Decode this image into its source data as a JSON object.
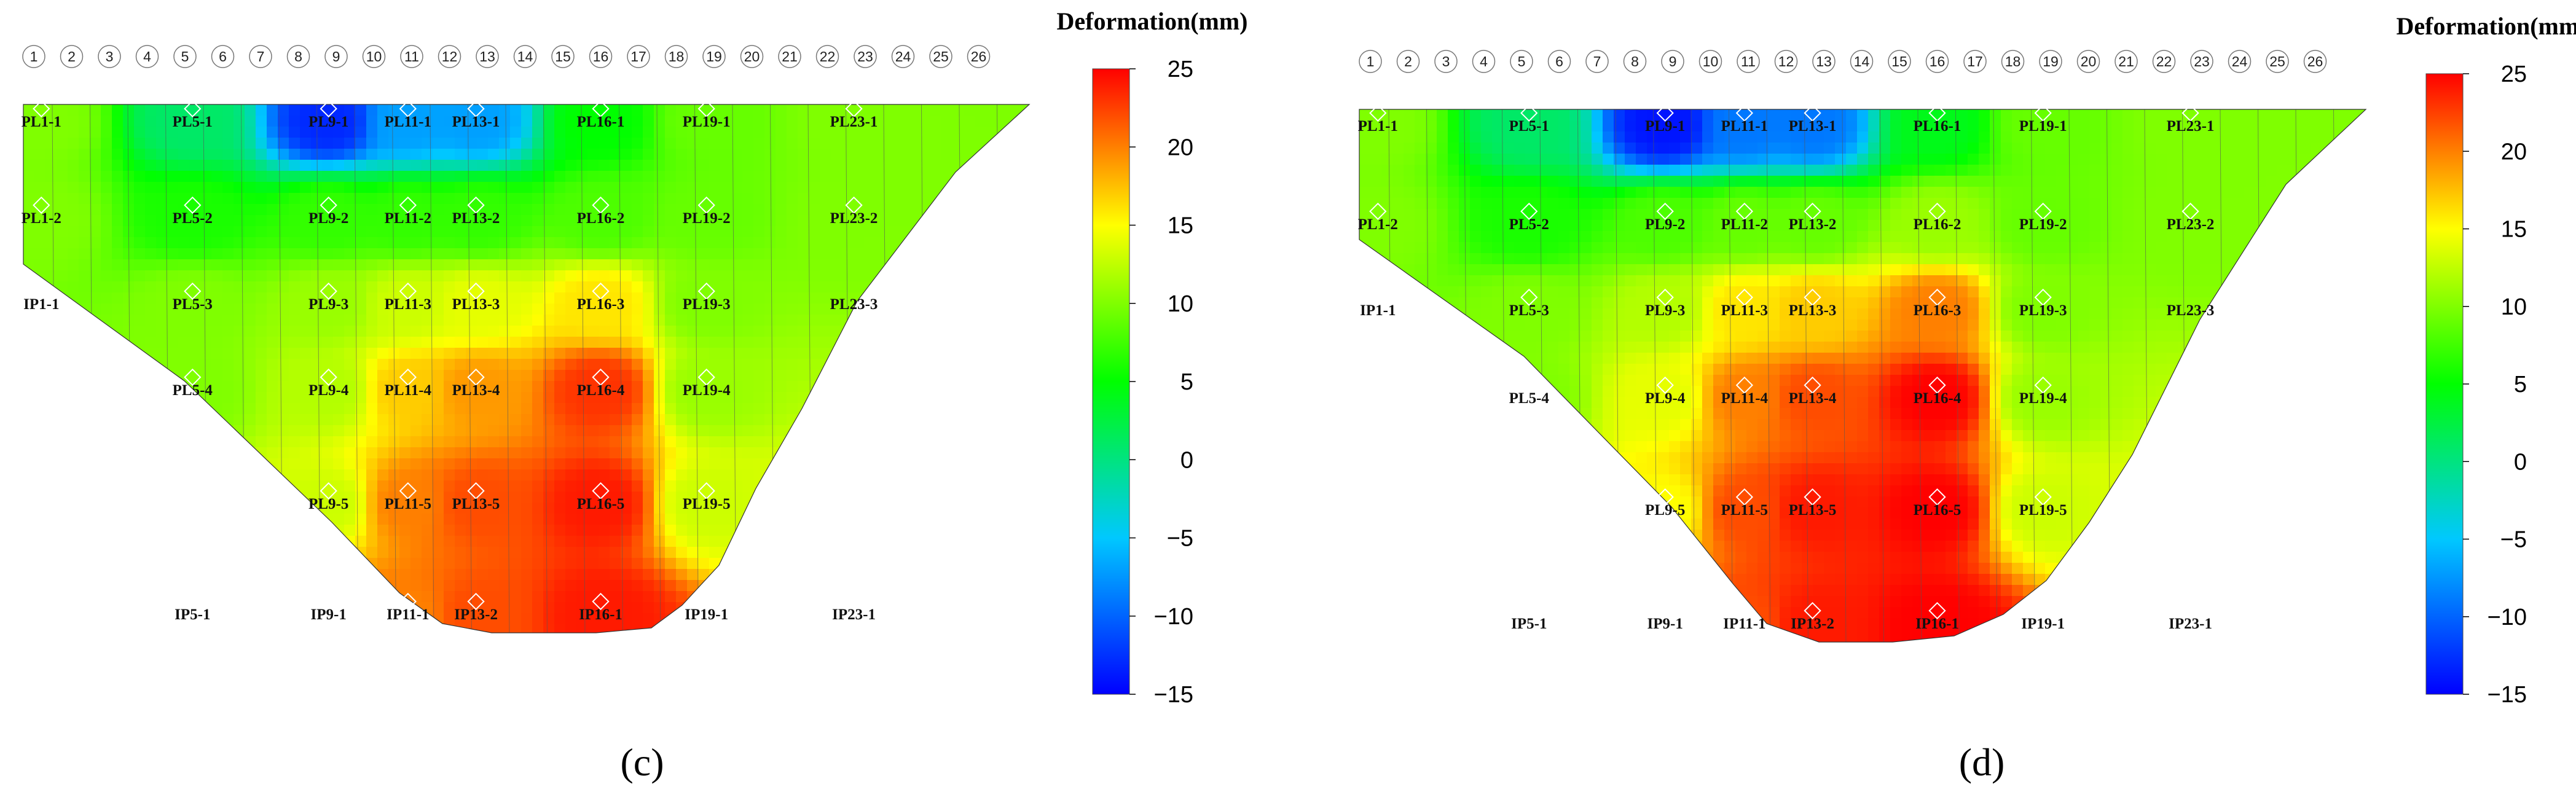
{
  "chart_data": [
    {
      "type": "heatmap",
      "panel_label": "c",
      "colorbar": {
        "title": "Deformation(mm)",
        "ticks": [
          25,
          20,
          15,
          10,
          5,
          0,
          -5,
          -10,
          -15
        ],
        "range": [
          -15,
          25
        ],
        "colors": [
          "#0000ff",
          "#00c8ff",
          "#00ff00",
          "#ffff00",
          "#ff0000"
        ]
      },
      "dam_segments": [
        "1",
        "2",
        "3",
        "4",
        "5",
        "6",
        "7",
        "8",
        "9",
        "10",
        "11",
        "12",
        "13",
        "14",
        "15",
        "16",
        "17",
        "18",
        "19",
        "20",
        "21",
        "22",
        "23",
        "24",
        "25",
        "26"
      ],
      "points": [
        {
          "id": "PL1-1",
          "seg": 1.2,
          "row": 1,
          "v": 10
        },
        {
          "id": "PL5-1",
          "seg": 5.2,
          "row": 1,
          "v": 1
        },
        {
          "id": "PL9-1",
          "seg": 8.8,
          "row": 1,
          "v": -13
        },
        {
          "id": "PL11-1",
          "seg": 10.9,
          "row": 1,
          "v": -7
        },
        {
          "id": "PL13-1",
          "seg": 12.7,
          "row": 1,
          "v": -7
        },
        {
          "id": "PL16-1",
          "seg": 16.0,
          "row": 1,
          "v": 5
        },
        {
          "id": "PL19-1",
          "seg": 18.8,
          "row": 1,
          "v": 9
        },
        {
          "id": "PL23-1",
          "seg": 22.7,
          "row": 1,
          "v": 10
        },
        {
          "id": "PL1-2",
          "seg": 1.2,
          "row": 2,
          "v": 10
        },
        {
          "id": "PL5-2",
          "seg": 5.2,
          "row": 2,
          "v": 6
        },
        {
          "id": "PL9-2",
          "seg": 8.8,
          "row": 2,
          "v": 7
        },
        {
          "id": "PL11-2",
          "seg": 10.9,
          "row": 2,
          "v": 7
        },
        {
          "id": "PL13-2",
          "seg": 12.7,
          "row": 2,
          "v": 7
        },
        {
          "id": "PL16-2",
          "seg": 16.0,
          "row": 2,
          "v": 8
        },
        {
          "id": "PL19-2",
          "seg": 18.8,
          "row": 2,
          "v": 9
        },
        {
          "id": "PL23-2",
          "seg": 22.7,
          "row": 2,
          "v": 10
        },
        {
          "id": "IP1-1",
          "seg": 1.2,
          "row": 3,
          "v": null
        },
        {
          "id": "PL5-3",
          "seg": 5.2,
          "row": 3,
          "v": 10
        },
        {
          "id": "PL9-3",
          "seg": 8.8,
          "row": 3,
          "v": 11
        },
        {
          "id": "PL11-3",
          "seg": 10.9,
          "row": 3,
          "v": 13
        },
        {
          "id": "PL13-3",
          "seg": 12.7,
          "row": 3,
          "v": 14
        },
        {
          "id": "PL16-3",
          "seg": 16.0,
          "row": 3,
          "v": 16
        },
        {
          "id": "PL19-3",
          "seg": 18.8,
          "row": 3,
          "v": 10
        },
        {
          "id": "PL23-3",
          "seg": 22.7,
          "row": 3,
          "v": null
        },
        {
          "id": "PL5-4",
          "seg": 5.2,
          "row": 4,
          "v": 10
        },
        {
          "id": "PL9-4",
          "seg": 8.8,
          "row": 4,
          "v": 12
        },
        {
          "id": "PL11-4",
          "seg": 10.9,
          "row": 4,
          "v": 17
        },
        {
          "id": "PL13-4",
          "seg": 12.7,
          "row": 4,
          "v": 19
        },
        {
          "id": "PL16-4",
          "seg": 16.0,
          "row": 4,
          "v": 23
        },
        {
          "id": "PL19-4",
          "seg": 18.8,
          "row": 4,
          "v": 11
        },
        {
          "id": "PL9-5",
          "seg": 8.8,
          "row": 5,
          "v": 13
        },
        {
          "id": "PL11-5",
          "seg": 10.9,
          "row": 5,
          "v": 20
        },
        {
          "id": "PL13-5",
          "seg": 12.7,
          "row": 5,
          "v": 22
        },
        {
          "id": "PL16-5",
          "seg": 16.0,
          "row": 5,
          "v": 24
        },
        {
          "id": "PL19-5",
          "seg": 18.8,
          "row": 5,
          "v": 13
        },
        {
          "id": "IP5-1",
          "seg": 5.2,
          "row": 6,
          "v": null
        },
        {
          "id": "IP9-1",
          "seg": 8.8,
          "row": 6,
          "v": null
        },
        {
          "id": "IP11-1",
          "seg": 10.9,
          "row": 6,
          "v": 20
        },
        {
          "id": "IP13-2",
          "seg": 12.7,
          "row": 6,
          "v": 22
        },
        {
          "id": "IP16-1",
          "seg": 16.0,
          "row": 6,
          "v": 24
        },
        {
          "id": "IP19-1",
          "seg": 18.8,
          "row": 6,
          "v": null
        },
        {
          "id": "IP23-1",
          "seg": 22.7,
          "row": 6,
          "v": null
        }
      ]
    },
    {
      "type": "heatmap",
      "panel_label": "d",
      "colorbar": {
        "title": "Deformation(mm)",
        "ticks": [
          25,
          20,
          15,
          10,
          5,
          0,
          -5,
          -10,
          -15
        ],
        "range": [
          -15,
          25
        ],
        "colors": [
          "#0000ff",
          "#00c8ff",
          "#00ff00",
          "#ffff00",
          "#ff0000"
        ]
      },
      "dam_segments": [
        "1",
        "2",
        "3",
        "4",
        "5",
        "6",
        "7",
        "8",
        "9",
        "10",
        "11",
        "12",
        "13",
        "14",
        "15",
        "16",
        "17",
        "18",
        "19",
        "20",
        "21",
        "22",
        "23",
        "24",
        "25",
        "26"
      ],
      "points": [
        {
          "id": "PL1-1",
          "seg": 1.2,
          "row": 1,
          "v": 10
        },
        {
          "id": "PL5-1",
          "seg": 5.2,
          "row": 1,
          "v": 1
        },
        {
          "id": "PL9-1",
          "seg": 8.8,
          "row": 1,
          "v": -14
        },
        {
          "id": "PL11-1",
          "seg": 10.9,
          "row": 1,
          "v": -9
        },
        {
          "id": "PL13-1",
          "seg": 12.7,
          "row": 1,
          "v": -9
        },
        {
          "id": "PL16-1",
          "seg": 16.0,
          "row": 1,
          "v": 4
        },
        {
          "id": "PL19-1",
          "seg": 18.8,
          "row": 1,
          "v": 9
        },
        {
          "id": "PL23-1",
          "seg": 22.7,
          "row": 1,
          "v": 10
        },
        {
          "id": "PL1-2",
          "seg": 1.2,
          "row": 2,
          "v": 10
        },
        {
          "id": "PL5-2",
          "seg": 5.2,
          "row": 2,
          "v": 6
        },
        {
          "id": "PL9-2",
          "seg": 8.8,
          "row": 2,
          "v": 8
        },
        {
          "id": "PL11-2",
          "seg": 10.9,
          "row": 2,
          "v": 9
        },
        {
          "id": "PL13-2",
          "seg": 12.7,
          "row": 2,
          "v": 9
        },
        {
          "id": "PL16-2",
          "seg": 16.0,
          "row": 2,
          "v": 11
        },
        {
          "id": "PL19-2",
          "seg": 18.8,
          "row": 2,
          "v": 9
        },
        {
          "id": "PL23-2",
          "seg": 22.7,
          "row": 2,
          "v": 10
        },
        {
          "id": "IP1-1",
          "seg": 1.2,
          "row": 3,
          "v": null
        },
        {
          "id": "PL5-3",
          "seg": 5.2,
          "row": 3,
          "v": 10
        },
        {
          "id": "PL9-3",
          "seg": 8.8,
          "row": 3,
          "v": 12
        },
        {
          "id": "PL11-3",
          "seg": 10.9,
          "row": 3,
          "v": 16
        },
        {
          "id": "PL13-3",
          "seg": 12.7,
          "row": 3,
          "v": 17
        },
        {
          "id": "PL16-3",
          "seg": 16.0,
          "row": 3,
          "v": 20
        },
        {
          "id": "PL19-3",
          "seg": 18.8,
          "row": 3,
          "v": 10
        },
        {
          "id": "PL23-3",
          "seg": 22.7,
          "row": 3,
          "v": null
        },
        {
          "id": "PL5-4",
          "seg": 5.2,
          "row": 4,
          "v": 10
        },
        {
          "id": "PL9-4",
          "seg": 8.8,
          "row": 4,
          "v": 14
        },
        {
          "id": "PL11-4",
          "seg": 10.9,
          "row": 4,
          "v": 20
        },
        {
          "id": "PL13-4",
          "seg": 12.7,
          "row": 4,
          "v": 22
        },
        {
          "id": "PL16-4",
          "seg": 16.0,
          "row": 4,
          "v": 25
        },
        {
          "id": "PL19-4",
          "seg": 18.8,
          "row": 4,
          "v": 11
        },
        {
          "id": "PL9-5",
          "seg": 8.8,
          "row": 5,
          "v": 15
        },
        {
          "id": "PL11-5",
          "seg": 10.9,
          "row": 5,
          "v": 22
        },
        {
          "id": "PL13-5",
          "seg": 12.7,
          "row": 5,
          "v": 24
        },
        {
          "id": "PL16-5",
          "seg": 16.0,
          "row": 5,
          "v": 25
        },
        {
          "id": "PL19-5",
          "seg": 18.8,
          "row": 5,
          "v": 13
        },
        {
          "id": "IP5-1",
          "seg": 5.2,
          "row": 6,
          "v": null
        },
        {
          "id": "IP9-1",
          "seg": 8.8,
          "row": 6,
          "v": null
        },
        {
          "id": "IP11-1",
          "seg": 10.9,
          "row": 6,
          "v": 22
        },
        {
          "id": "IP13-2",
          "seg": 12.7,
          "row": 6,
          "v": 24
        },
        {
          "id": "IP16-1",
          "seg": 16.0,
          "row": 6,
          "v": 25
        },
        {
          "id": "IP19-1",
          "seg": 18.8,
          "row": 6,
          "v": null
        },
        {
          "id": "IP23-1",
          "seg": 22.7,
          "row": 6,
          "v": null
        }
      ]
    }
  ],
  "captions": [
    "(c)",
    "(d)"
  ]
}
